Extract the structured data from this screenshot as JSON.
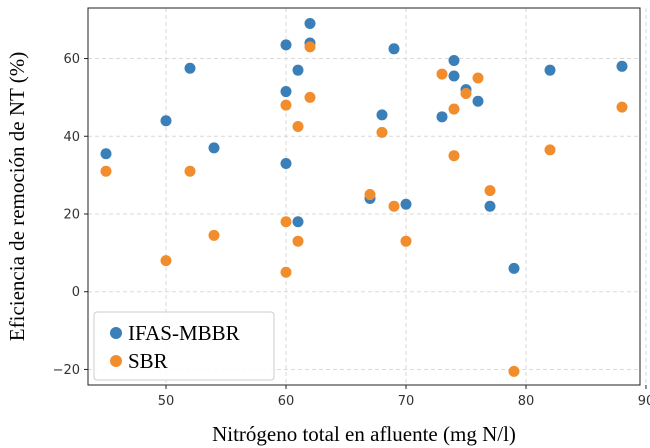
{
  "chart_data": {
    "type": "scatter",
    "title": "",
    "xlabel": "Nitrógeno total en afluente (mg N/l)",
    "ylabel": "Eficiencia de remoción de NT (%)",
    "xlim": [
      43.5,
      89.5
    ],
    "ylim": [
      -24,
      73
    ],
    "xticks": [
      50,
      60,
      70,
      80,
      90
    ],
    "yticks": [
      -20,
      0,
      20,
      40,
      60
    ],
    "grid": true,
    "legend": "bottom-left",
    "series": [
      {
        "name": "IFAS-MBBR",
        "color": "#3a7fb8",
        "x": [
          45,
          50,
          52,
          54,
          60,
          60,
          60,
          61,
          61,
          62,
          62,
          67,
          68,
          69,
          70,
          73,
          74,
          74,
          75,
          76,
          77,
          79,
          82,
          88
        ],
        "y": [
          35.5,
          44,
          57.5,
          37,
          63.5,
          51.5,
          33,
          57,
          18,
          69,
          64,
          24,
          45.5,
          62.5,
          22.5,
          45,
          59.5,
          55.5,
          52,
          49,
          22,
          6,
          57,
          58
        ]
      },
      {
        "name": "SBR",
        "color": "#f28d2e",
        "x": [
          45,
          50,
          52,
          54,
          60,
          60,
          60,
          61,
          61,
          62,
          62,
          67,
          68,
          69,
          70,
          73,
          74,
          74,
          75,
          76,
          77,
          79,
          82,
          88
        ],
        "y": [
          31,
          8,
          31,
          14.5,
          48,
          18,
          5,
          42.5,
          13,
          63,
          50,
          25,
          41,
          22,
          13,
          56,
          47,
          35,
          51,
          55,
          26,
          -20.5,
          36.5,
          47.5
        ]
      }
    ]
  }
}
